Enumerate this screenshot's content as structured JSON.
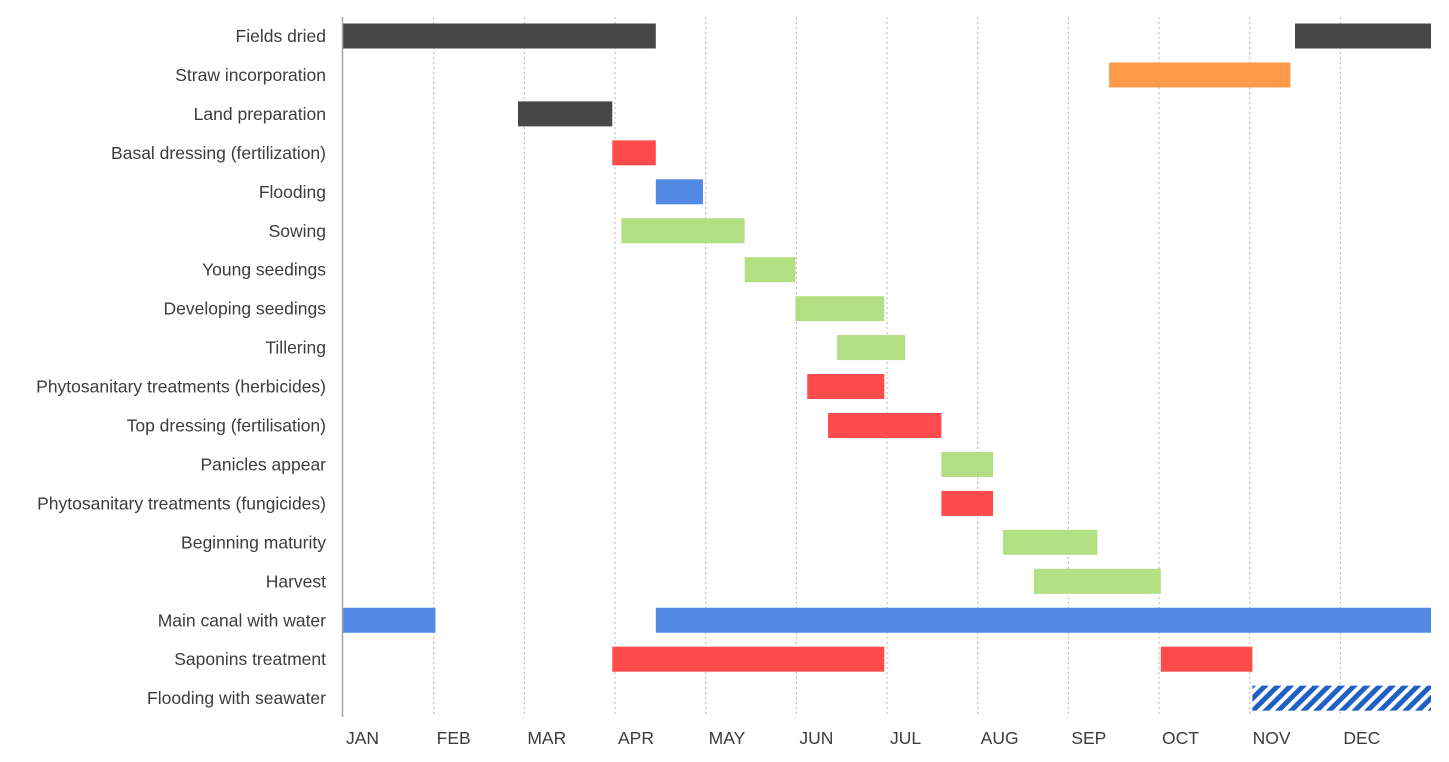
{
  "chart_data": {
    "type": "gantt",
    "title": "",
    "xlabel": "",
    "ylabel": "",
    "x_unit": "month",
    "xlim": [
      0,
      12
    ],
    "grid": "vertical dotted",
    "months": [
      "JAN",
      "FEB",
      "MAR",
      "APR",
      "MAY",
      "JUN",
      "JUL",
      "AUG",
      "SEP",
      "OCT",
      "NOV",
      "DEC"
    ],
    "categories": [
      "Fields dried",
      "Straw incorporation",
      "Land preparation",
      "Basal dressing (fertilization)",
      "Flooding",
      "Sowing",
      "Young seedings",
      "Developing seedings",
      "Tillering",
      "Phytosanitary treatments (herbicides)",
      "Top dressing (fertilisation)",
      "Panicles appear",
      "Phytosanitary treatments (fungicides)",
      "Beginning maturity",
      "Harvest",
      "Main canal with water",
      "Saponins treatment",
      "Flooding with seawater"
    ],
    "colors": {
      "dark": "#474747",
      "orange": "#ff9a4a",
      "red": "#ff4b4b",
      "blue": "#5189e2",
      "green": "#b2df82",
      "seawater_hatch": "#1f60c6"
    },
    "bars": [
      {
        "row": 0,
        "start": 0.0,
        "end": 3.45,
        "color": "dark"
      },
      {
        "row": 0,
        "start": 10.5,
        "end": 12.0,
        "color": "dark"
      },
      {
        "row": 1,
        "start": 8.45,
        "end": 10.45,
        "color": "orange"
      },
      {
        "row": 2,
        "start": 1.93,
        "end": 2.97,
        "color": "dark"
      },
      {
        "row": 3,
        "start": 2.97,
        "end": 3.45,
        "color": "red"
      },
      {
        "row": 4,
        "start": 3.45,
        "end": 3.97,
        "color": "blue"
      },
      {
        "row": 5,
        "start": 3.07,
        "end": 4.43,
        "color": "green"
      },
      {
        "row": 6,
        "start": 4.43,
        "end": 4.99,
        "color": "green"
      },
      {
        "row": 7,
        "start": 4.99,
        "end": 5.97,
        "color": "green"
      },
      {
        "row": 8,
        "start": 5.45,
        "end": 6.2,
        "color": "green"
      },
      {
        "row": 9,
        "start": 5.12,
        "end": 5.97,
        "color": "red"
      },
      {
        "row": 10,
        "start": 5.35,
        "end": 6.6,
        "color": "red"
      },
      {
        "row": 11,
        "start": 6.6,
        "end": 7.17,
        "color": "green"
      },
      {
        "row": 12,
        "start": 6.6,
        "end": 7.17,
        "color": "red"
      },
      {
        "row": 13,
        "start": 7.28,
        "end": 8.32,
        "color": "green"
      },
      {
        "row": 14,
        "start": 7.62,
        "end": 9.02,
        "color": "green"
      },
      {
        "row": 15,
        "start": 0.0,
        "end": 1.02,
        "color": "blue"
      },
      {
        "row": 15,
        "start": 3.45,
        "end": 12.0,
        "color": "blue"
      },
      {
        "row": 16,
        "start": 2.97,
        "end": 5.97,
        "color": "red"
      },
      {
        "row": 16,
        "start": 9.02,
        "end": 10.03,
        "color": "red"
      },
      {
        "row": 17,
        "start": 10.03,
        "end": 12.0,
        "color": "seawater_hatch",
        "pattern": "diagonal-hatch"
      }
    ]
  }
}
